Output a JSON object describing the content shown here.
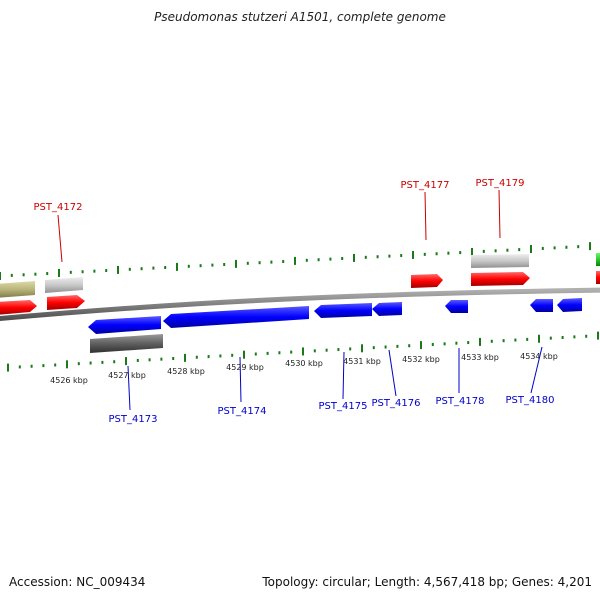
{
  "header": {
    "title": "Pseudomonas stutzeri A1501, complete genome"
  },
  "footer": {
    "accession": "Accession: NC_009434",
    "summary": "Topology: circular; Length: 4,567,418 bp; Genes: 4,201"
  },
  "colors": {
    "forward_cds": "#ff0000",
    "reverse_cds": "#0000ff",
    "forward_label": "#cc0000",
    "reverse_label": "#0000cc",
    "ticks": "#1a7a1a",
    "backbone": "#808080",
    "pseudo_gray": "#c8c8c8",
    "dark_gray": "#606060",
    "olive": "#b9b47a",
    "green_feature": "#00cc00"
  },
  "axis": {
    "unit": "kbp",
    "tick_labels": [
      "4526 kbp",
      "4527 kbp",
      "4528 kbp",
      "4529 kbp",
      "4530 kbp",
      "4531 kbp",
      "4532 kbp",
      "4533 kbp",
      "4534 kbp"
    ]
  },
  "genes": {
    "forward": [
      "PST_4172",
      "PST_4177",
      "PST_4179"
    ],
    "reverse": [
      "PST_4173",
      "PST_4174",
      "PST_4175",
      "PST_4176",
      "PST_4178",
      "PST_4180"
    ]
  }
}
